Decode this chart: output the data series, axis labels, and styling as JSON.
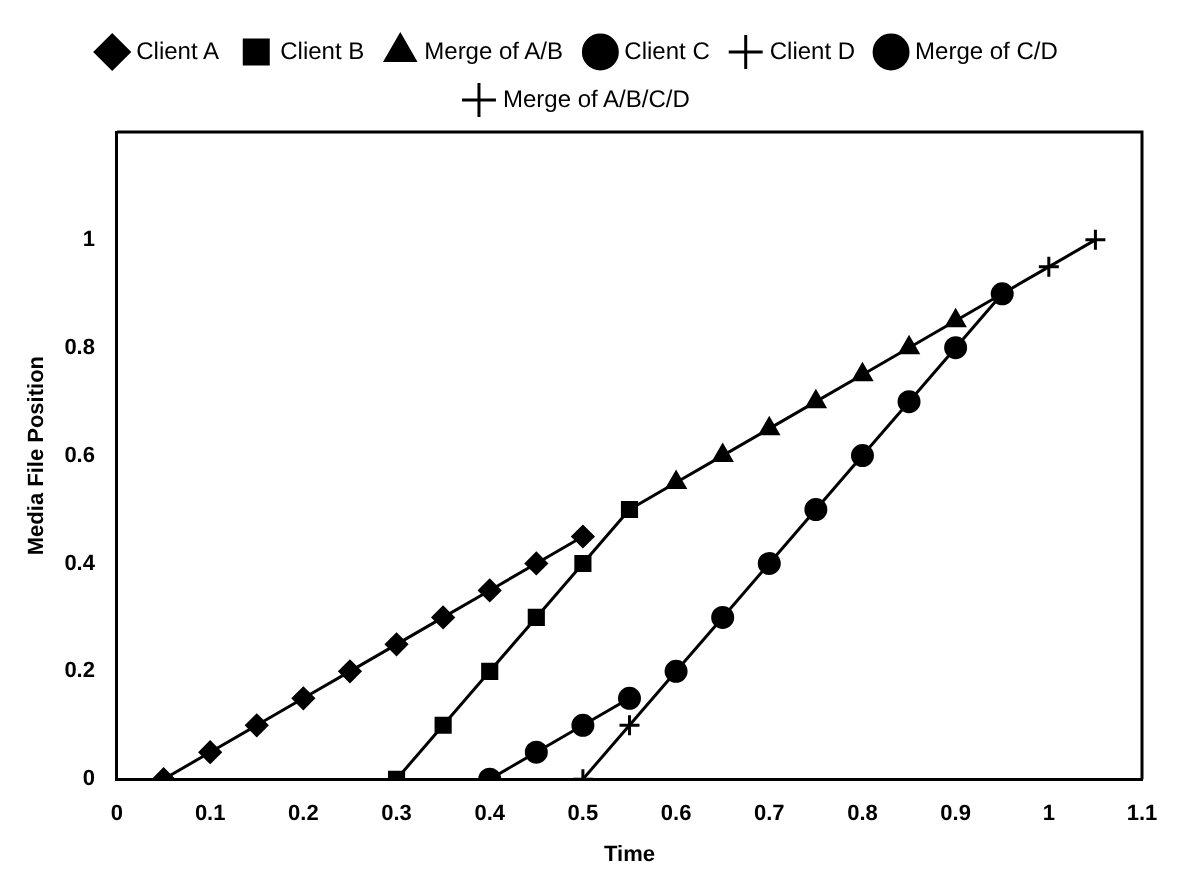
{
  "chart_data": {
    "type": "line",
    "xlabel": "Time",
    "ylabel": "Media File Position",
    "xlim": [
      0,
      1.1
    ],
    "xticks": [
      0,
      0.1,
      0.2,
      0.3,
      0.4,
      0.5,
      0.6,
      0.7,
      0.8,
      0.9,
      1,
      1.1
    ],
    "ylim": [
      0,
      1.2
    ],
    "yticks": [
      0,
      0.2,
      0.4,
      0.6,
      0.8,
      1
    ],
    "grid": false,
    "legend": "top",
    "line_style": "solid",
    "series": [
      {
        "name": "Client A",
        "color": "#000000",
        "marker": "diamond",
        "x": [
          0.05,
          0.1,
          0.15,
          0.2,
          0.25,
          0.3,
          0.35,
          0.4,
          0.45,
          0.5
        ],
        "values": [
          0,
          0.05,
          0.1,
          0.15,
          0.2,
          0.25,
          0.3,
          0.35,
          0.4,
          0.45
        ]
      },
      {
        "name": "Client B",
        "color": "#000000",
        "marker": "square",
        "x": [
          0.3,
          0.35,
          0.4,
          0.45,
          0.5,
          0.55
        ],
        "values": [
          0,
          0.1,
          0.2,
          0.3,
          0.4,
          0.5
        ]
      },
      {
        "name": "Merge of A/B",
        "color": "#000000",
        "marker": "triangle",
        "x": [
          0.55,
          0.6,
          0.65,
          0.7,
          0.75,
          0.8,
          0.85,
          0.9,
          0.95
        ],
        "values": [
          0.5,
          0.55,
          0.6,
          0.65,
          0.7,
          0.75,
          0.8,
          0.85,
          0.9
        ]
      },
      {
        "name": "Client C",
        "color": "#000000",
        "marker": "circle",
        "x": [
          0.4,
          0.45,
          0.5,
          0.55
        ],
        "values": [
          0,
          0.05,
          0.1,
          0.15
        ]
      },
      {
        "name": "Client D",
        "color": "#000000",
        "marker": "cross",
        "x": [
          0.5,
          0.55,
          0.6
        ],
        "values": [
          0,
          0.1,
          0.2
        ]
      },
      {
        "name": "Merge of C/D",
        "color": "#000000",
        "marker": "circle",
        "x": [
          0.6,
          0.65,
          0.7,
          0.75,
          0.8,
          0.85,
          0.9,
          0.95
        ],
        "values": [
          0.2,
          0.3,
          0.4,
          0.5,
          0.6,
          0.7,
          0.8,
          0.9
        ]
      },
      {
        "name": "Merge of A/B/C/D",
        "color": "#000000",
        "marker": "cross",
        "x": [
          0.95,
          1,
          1.05
        ],
        "values": [
          0.9,
          0.95,
          1
        ]
      }
    ]
  }
}
